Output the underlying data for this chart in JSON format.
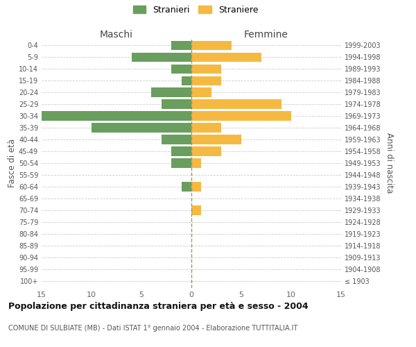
{
  "age_groups": [
    "100+",
    "95-99",
    "90-94",
    "85-89",
    "80-84",
    "75-79",
    "70-74",
    "65-69",
    "60-64",
    "55-59",
    "50-54",
    "45-49",
    "40-44",
    "35-39",
    "30-34",
    "25-29",
    "20-24",
    "15-19",
    "10-14",
    "5-9",
    "0-4"
  ],
  "birth_years": [
    "≤ 1903",
    "1904-1908",
    "1909-1913",
    "1914-1918",
    "1919-1923",
    "1924-1928",
    "1929-1933",
    "1934-1938",
    "1939-1943",
    "1944-1948",
    "1949-1953",
    "1954-1958",
    "1959-1963",
    "1964-1968",
    "1969-1973",
    "1974-1978",
    "1979-1983",
    "1984-1988",
    "1989-1993",
    "1994-1998",
    "1999-2003"
  ],
  "males": [
    0,
    0,
    0,
    0,
    0,
    0,
    0,
    0,
    1,
    0,
    2,
    2,
    3,
    10,
    15,
    3,
    4,
    1,
    2,
    6,
    2
  ],
  "females": [
    0,
    0,
    0,
    0,
    0,
    0,
    1,
    0,
    1,
    0,
    1,
    3,
    5,
    3,
    10,
    9,
    2,
    3,
    3,
    7,
    4
  ],
  "male_color": "#6a9e5e",
  "female_color": "#f5b942",
  "background_color": "#ffffff",
  "grid_color": "#cccccc",
  "title": "Popolazione per cittadinanza straniera per età e sesso - 2004",
  "subtitle": "COMUNE DI SULBIATE (MB) - Dati ISTAT 1° gennaio 2004 - Elaborazione TUTTITALIA.IT",
  "left_label": "Maschi",
  "right_label": "Femmine",
  "ylabel_left": "Fasce di età",
  "ylabel_right": "Anni di nascita",
  "legend_male": "Stranieri",
  "legend_female": "Straniere",
  "xlim": 15,
  "bar_height": 0.78
}
